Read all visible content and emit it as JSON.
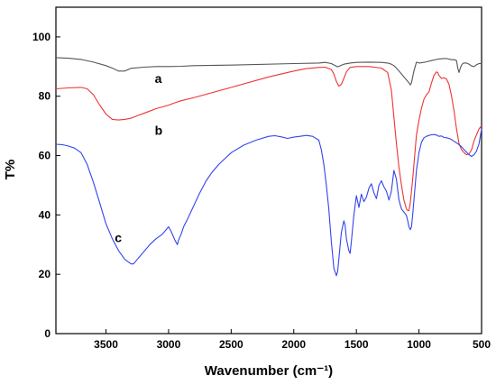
{
  "chart_data": {
    "type": "line",
    "xlabel": "Wavenumber (cm⁻¹)",
    "ylabel": "T%",
    "xlim": [
      3900,
      500
    ],
    "ylim": [
      0,
      110
    ],
    "x_ticks": [
      3500,
      3000,
      2500,
      2000,
      1500,
      1000,
      500
    ],
    "y_ticks": [
      0,
      20,
      40,
      60,
      80,
      100
    ],
    "x_reversed": true,
    "grid": false,
    "series": [
      {
        "name": "a",
        "color": "#555555",
        "label_at": [
          3110,
          84.5
        ],
        "x": [
          3900,
          3800,
          3700,
          3600,
          3500,
          3450,
          3400,
          3350,
          3300,
          3200,
          3100,
          3000,
          2900,
          2800,
          2500,
          2000,
          1800,
          1750,
          1700,
          1650,
          1600,
          1550,
          1500,
          1400,
          1300,
          1250,
          1220,
          1200,
          1180,
          1160,
          1140,
          1120,
          1100,
          1080,
          1070,
          1060,
          1050,
          1040,
          1030,
          1020,
          1000,
          950,
          900,
          850,
          800,
          780,
          760,
          740,
          720,
          700,
          690,
          680,
          670,
          660,
          650,
          640,
          620,
          600,
          580,
          560,
          540,
          520,
          500
        ],
        "y": [
          93,
          92.8,
          92.4,
          91.5,
          90.3,
          89.5,
          88.5,
          88.5,
          89.4,
          89.8,
          90,
          90,
          90.1,
          90.3,
          90.5,
          91,
          91.2,
          91.4,
          91,
          89.9,
          90.8,
          91.2,
          91.4,
          91.5,
          91.4,
          91.2,
          90.8,
          90.3,
          89.5,
          88.5,
          87.5,
          86.5,
          85.5,
          84.5,
          83.8,
          84.5,
          86.5,
          88.5,
          90,
          91.5,
          91.2,
          91.5,
          92,
          92.5,
          92.7,
          92.7,
          92.5,
          92.3,
          92.3,
          92,
          89.5,
          88,
          89.5,
          90.5,
          91,
          91.2,
          91.2,
          90.8,
          90.2,
          90,
          90.6,
          91,
          91
        ]
      },
      {
        "name": "b",
        "color": "#ee3333",
        "label_at": [
          3110,
          67
        ],
        "x": [
          3900,
          3800,
          3700,
          3650,
          3600,
          3550,
          3500,
          3450,
          3400,
          3350,
          3300,
          3250,
          3200,
          3150,
          3100,
          3050,
          3000,
          2950,
          2900,
          2800,
          2500,
          2200,
          2000,
          1900,
          1800,
          1750,
          1700,
          1680,
          1660,
          1640,
          1620,
          1600,
          1580,
          1550,
          1500,
          1400,
          1300,
          1250,
          1220,
          1200,
          1180,
          1160,
          1140,
          1120,
          1100,
          1090,
          1080,
          1070,
          1060,
          1050,
          1040,
          1030,
          1020,
          1000,
          980,
          960,
          940,
          920,
          900,
          880,
          860,
          850,
          840,
          820,
          800,
          780,
          760,
          740,
          720,
          700,
          680,
          660,
          640,
          620,
          600,
          580,
          560,
          540,
          520,
          500
        ],
        "y": [
          82.5,
          82.8,
          83,
          82.5,
          80.5,
          77,
          74,
          72.2,
          72,
          72.2,
          72.6,
          73.4,
          74.2,
          75,
          75.8,
          76.4,
          77,
          77.8,
          78.5,
          79.5,
          83,
          86.5,
          88.5,
          89.3,
          89.7,
          89.8,
          89,
          87.5,
          85,
          83.4,
          84,
          86,
          88.2,
          89.7,
          90,
          90,
          89.5,
          88,
          82,
          73,
          64,
          56,
          50,
          45,
          42,
          41.5,
          41.5,
          44,
          48,
          52,
          57,
          62,
          67,
          72,
          76,
          79,
          80.5,
          81.5,
          84.5,
          87,
          88.2,
          88,
          87,
          86,
          86.2,
          85.8,
          84,
          80,
          75,
          69,
          64,
          62,
          61,
          60.3,
          60.5,
          62,
          65,
          67,
          69,
          70
        ]
      },
      {
        "name": "c",
        "color": "#3344ee",
        "label_at": [
          3430,
          30.8
        ],
        "x": [
          3900,
          3850,
          3800,
          3750,
          3700,
          3650,
          3600,
          3550,
          3500,
          3450,
          3400,
          3350,
          3300,
          3280,
          3250,
          3200,
          3150,
          3100,
          3050,
          3000,
          2980,
          2950,
          2930,
          2920,
          2900,
          2880,
          2850,
          2800,
          2750,
          2700,
          2650,
          2600,
          2500,
          2400,
          2300,
          2200,
          2150,
          2100,
          2050,
          2000,
          1950,
          1900,
          1850,
          1800,
          1780,
          1760,
          1740,
          1720,
          1700,
          1680,
          1660,
          1650,
          1640,
          1620,
          1600,
          1590,
          1580,
          1560,
          1550,
          1540,
          1520,
          1500,
          1480,
          1460,
          1440,
          1420,
          1400,
          1380,
          1360,
          1340,
          1320,
          1300,
          1280,
          1260,
          1240,
          1220,
          1200,
          1180,
          1160,
          1140,
          1120,
          1100,
          1090,
          1080,
          1070,
          1060,
          1050,
          1040,
          1030,
          1020,
          1000,
          980,
          960,
          940,
          920,
          900,
          880,
          860,
          840,
          820,
          800,
          780,
          760,
          740,
          720,
          700,
          680,
          660,
          640,
          620,
          600,
          580,
          560,
          540,
          520,
          500
        ],
        "y": [
          63.8,
          63.7,
          63.2,
          62.5,
          61,
          57,
          51,
          44,
          37,
          32,
          28,
          25,
          23.5,
          23.5,
          25,
          27.5,
          30,
          32,
          33.5,
          36,
          34.5,
          31.5,
          30,
          31.5,
          33.5,
          36,
          38.5,
          43,
          47.5,
          51.5,
          54.5,
          57,
          61,
          63.5,
          65.2,
          66.5,
          66.7,
          66.3,
          65.8,
          66.2,
          66.5,
          66.8,
          66.5,
          65.2,
          62,
          57,
          50,
          42,
          31,
          22,
          19.5,
          21,
          25,
          34,
          38,
          36.5,
          32,
          28,
          27,
          31,
          40,
          46.5,
          42.5,
          47,
          44.5,
          46,
          49,
          50.5,
          47.5,
          45.5,
          50,
          51.5,
          49.5,
          48,
          45,
          48,
          55,
          52,
          45,
          42,
          41,
          39.8,
          38,
          36,
          35,
          36,
          40,
          45,
          50,
          55,
          61,
          64.5,
          66,
          66.5,
          66.8,
          67,
          67.1,
          66.9,
          66.5,
          66.6,
          66.1,
          66,
          65.8,
          65.4,
          64.8,
          64.3,
          63.7,
          63,
          62,
          61.2,
          60.3,
          59.7,
          60.3,
          61.5,
          64,
          69
        ]
      }
    ]
  }
}
